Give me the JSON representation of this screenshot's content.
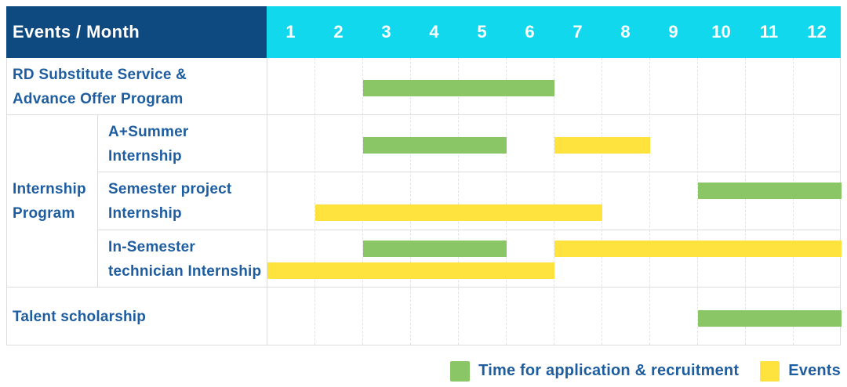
{
  "header": {
    "title": "Events / Month",
    "months": [
      "1",
      "2",
      "3",
      "4",
      "5",
      "6",
      "7",
      "8",
      "9",
      "10",
      "11",
      "12"
    ]
  },
  "colors": {
    "header_bg": "#0e4a80",
    "months_bg": "#12d8ee",
    "header_text": "#ffffff",
    "label_text": "#1e5da0",
    "application_bar": "#8ac566",
    "events_bar": "#fee23e",
    "grid_line": "#dcdcdc",
    "month_line": "#e3e3e3"
  },
  "chart_data": {
    "type": "gantt",
    "unit": "month",
    "x_range": [
      1,
      12
    ],
    "grid": "on",
    "sections": [
      {
        "title_lines": [],
        "rows": [
          {
            "label_lines": [
              "RD Substitute Service &",
              "Advance Offer Program"
            ],
            "bars": [
              {
                "kind": "application",
                "start_month": 3,
                "end_month": 6,
                "lane": "single"
              }
            ]
          }
        ]
      },
      {
        "title_lines": [
          "Internship",
          "Program"
        ],
        "rows": [
          {
            "label_lines": [
              "A+Summer",
              "Internship"
            ],
            "bars": [
              {
                "kind": "application",
                "start_month": 3,
                "end_month": 5,
                "lane": "single"
              },
              {
                "kind": "events",
                "start_month": 7,
                "end_month": 8,
                "lane": "single"
              }
            ]
          },
          {
            "label_lines": [
              "Semester project",
              "Internship"
            ],
            "bars": [
              {
                "kind": "application",
                "start_month": 10,
                "end_month": 12,
                "lane": "top"
              },
              {
                "kind": "events",
                "start_month": 2,
                "end_month": 7,
                "lane": "bottom"
              }
            ]
          },
          {
            "label_lines": [
              "In-Semester",
              "technician Internship"
            ],
            "bars": [
              {
                "kind": "application",
                "start_month": 3,
                "end_month": 5,
                "lane": "top"
              },
              {
                "kind": "events",
                "start_month": 7,
                "end_month": 12,
                "lane": "top"
              },
              {
                "kind": "events",
                "start_month": 1,
                "end_month": 6,
                "lane": "bottom"
              }
            ]
          }
        ]
      },
      {
        "title_lines": [],
        "rows": [
          {
            "label_lines": [
              "Talent scholarship"
            ],
            "bars": [
              {
                "kind": "application",
                "start_month": 10,
                "end_month": 12,
                "lane": "single"
              }
            ]
          }
        ]
      }
    ],
    "legend": [
      {
        "kind": "application",
        "label": "Time for application & recruitment"
      },
      {
        "kind": "events",
        "label": "Events"
      }
    ]
  }
}
